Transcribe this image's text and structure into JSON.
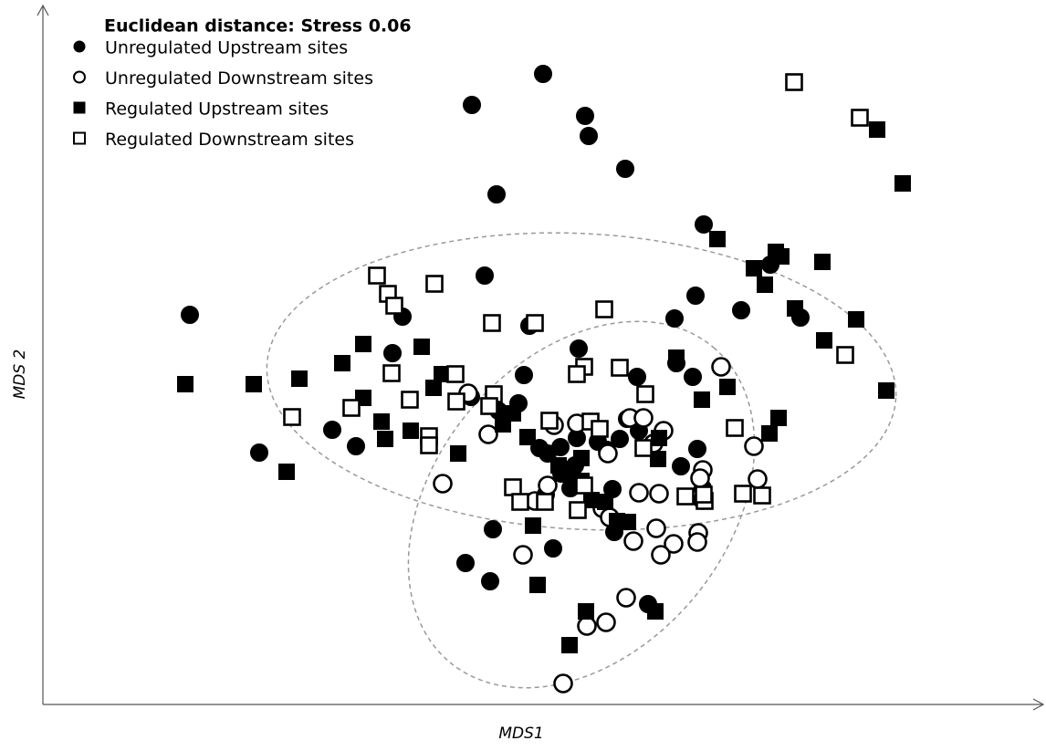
{
  "chart_data": {
    "type": "scatter",
    "title": "Euclidean distance: Stress 0.06",
    "x_label": "MDS1",
    "y_label": "MDS 2",
    "xlim": [
      47,
      1140
    ],
    "ylim": [
      0,
      762
    ],
    "series": [
      {
        "name": "Unregulated Upstream sites",
        "marker": "circle",
        "filled": true,
        "color": "#000000",
        "x": [
          595,
          517,
          641,
          645,
          685,
          544,
          771,
          844,
          531,
          208,
          441,
          580,
          762,
          812,
          877,
          739,
          634,
          430,
          741,
          574,
          759,
          698,
          516,
          568,
          546,
          364,
          390,
          284,
          600,
          614,
          632,
          655,
          665,
          679,
          687,
          700,
          764,
          746,
          615,
          630,
          625,
          598,
          671,
          770,
          673,
          540,
          606,
          510,
          537,
          710,
          591,
          630
        ],
        "values": [
          691,
          657,
          645,
          623,
          587,
          559,
          526,
          482,
          470,
          427,
          425,
          415,
          448,
          432,
          424,
          423,
          390,
          385,
          374,
          361,
          359,
          359,
          337,
          330,
          322,
          301,
          283,
          276,
          275,
          282,
          292,
          288,
          279,
          291,
          313,
          300,
          280,
          261,
          253,
          262,
          237,
          230,
          236,
          237,
          189,
          192,
          171,
          155,
          135,
          110,
          281,
          247
        ]
      },
      {
        "name": "Unregulated Downstream sites",
        "marker": "circle",
        "filled": false,
        "color": "#000000",
        "x": [
          790,
          826,
          830,
          485,
          535,
          607,
          632,
          690,
          705,
          727,
          666,
          716,
          770,
          767,
          700,
          722,
          660,
          668,
          719,
          694,
          738,
          765,
          764,
          724,
          573,
          686,
          643,
          664,
          617,
          513,
          586,
          600,
          770
        ],
        "values": [
          370,
          283,
          247,
          242,
          296,
          306,
          308,
          314,
          314,
          300,
          275,
          286,
          257,
          248,
          232,
          231,
          215,
          205,
          193,
          179,
          176,
          188,
          178,
          164,
          164,
          117,
          86,
          90,
          23,
          341,
          223,
          240,
          224
        ]
      },
      {
        "name": "Regulated Upstream sites",
        "marker": "square",
        "filled": true,
        "color": "#000000",
        "x": [
          961,
          989,
          786,
          850,
          856,
          826,
          901,
          838,
          871,
          938,
          903,
          971,
          853,
          843,
          741,
          797,
          769,
          722,
          721,
          203,
          278,
          328,
          314,
          375,
          398,
          398,
          418,
          422,
          450,
          462,
          475,
          484,
          502,
          551,
          562,
          578,
          612,
          637,
          648,
          663,
          676,
          688,
          584,
          589,
          642,
          718,
          624,
          637
        ],
        "values": [
          630,
          571,
          510,
          496,
          491,
          478,
          485,
          460,
          434,
          422,
          399,
          344,
          314,
          297,
          380,
          348,
          334,
          292,
          269,
          351,
          351,
          357,
          255,
          374,
          395,
          336,
          310,
          291,
          300,
          392,
          347,
          362,
          275,
          307,
          319,
          293,
          262,
          245,
          224,
          222,
          201,
          200,
          196,
          131,
          102,
          102,
          65,
          270
        ]
      },
      {
        "name": "Regulated Downstream sites",
        "marker": "square",
        "filled": false,
        "color": "#000000",
        "x": [
          870,
          942,
          926,
          805,
          835,
          814,
          772,
          751,
          771,
          413,
          476,
          425,
          432,
          539,
          586,
          662,
          429,
          499,
          385,
          320,
          449,
          500,
          541,
          536,
          470,
          470,
          640,
          632,
          679,
          707,
          602,
          647,
          657,
          705,
          562,
          570,
          597,
          633,
          640
        ],
        "values": [
          682,
          643,
          383,
          303,
          229,
          231,
          223,
          228,
          230,
          470,
          461,
          450,
          437,
          418,
          418,
          433,
          363,
          362,
          325,
          315,
          334,
          332,
          340,
          327,
          294,
          284,
          370,
          362,
          369,
          340,
          311,
          310,
          302,
          281,
          238,
          222,
          222,
          213,
          240
        ]
      }
    ],
    "ellipses": [
      {
        "cx": 637,
        "cy": 354,
        "rx": 345,
        "ry": 162,
        "angle": -3,
        "color": "#999999"
      },
      {
        "cx": 637,
        "cy": 219,
        "rx": 225,
        "ry": 160,
        "angle": 50,
        "color": "#999999"
      }
    ]
  }
}
